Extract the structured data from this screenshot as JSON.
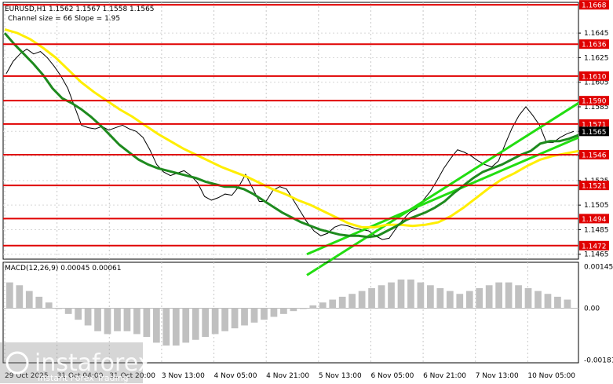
{
  "chart_data": {
    "type": "line",
    "header": {
      "symbol_line": "EURUSD,H1  1.1562 1.1567 1.1558 1.1565",
      "channel_line": "Channel size = 66 Slope = 1.95"
    },
    "price_axis": {
      "ylim": [
        1.1461,
        1.167
      ],
      "ticks": [
        "1.1645",
        "1.1625",
        "1.1605",
        "1.1585",
        "1.1565",
        "1.1545",
        "1.1525",
        "1.1505",
        "1.1485",
        "1.1465"
      ]
    },
    "current_price": "1.1565",
    "levels": [
      {
        "price": 1.1668,
        "label": "1.1668"
      },
      {
        "price": 1.1636,
        "label": "1.1636"
      },
      {
        "price": 1.161,
        "label": "1.1610"
      },
      {
        "price": 1.159,
        "label": "1.1590"
      },
      {
        "price": 1.1571,
        "label": "1.1571"
      },
      {
        "price": 1.1546,
        "label": "1.1546"
      },
      {
        "price": 1.1521,
        "label": "1.1521"
      },
      {
        "price": 1.1494,
        "label": "1.1494"
      },
      {
        "price": 1.1472,
        "label": "1.1472"
      }
    ],
    "x_labels": [
      "29 Oct 2025",
      "31 Oct 04:00",
      "31 Oct 20:00",
      "3 Nov 13:00",
      "4 Nov 05:00",
      "4 Nov 21:00",
      "5 Nov 13:00",
      "6 Nov 05:00",
      "6 Nov 21:00",
      "7 Nov 13:00",
      "10 Nov 05:00"
    ],
    "close": [
      1.1612,
      1.1622,
      1.1628,
      1.1632,
      1.1628,
      1.163,
      1.1625,
      1.1618,
      1.161,
      1.16,
      1.1585,
      1.157,
      1.1568,
      1.1567,
      1.1569,
      1.1566,
      1.1568,
      1.157,
      1.1567,
      1.1565,
      1.156,
      1.155,
      1.1538,
      1.1532,
      1.1529,
      1.1531,
      1.1533,
      1.1529,
      1.1523,
      1.1512,
      1.1509,
      1.1511,
      1.1514,
      1.1513,
      1.152,
      1.153,
      1.1519,
      1.1508,
      1.1508,
      1.1517,
      1.152,
      1.1518,
      1.1509,
      1.15,
      1.1491,
      1.1484,
      1.148,
      1.1482,
      1.1487,
      1.1489,
      1.1488,
      1.1486,
      1.1485,
      1.1484,
      1.148,
      1.1477,
      1.1478,
      1.1486,
      1.1493,
      1.1499,
      1.1502,
      1.1509,
      1.1516,
      1.1525,
      1.1535,
      1.1543,
      1.155,
      1.1548,
      1.1545,
      1.1541,
      1.1538,
      1.1536,
      1.1541,
      1.1555,
      1.1568,
      1.1578,
      1.1585,
      1.1578,
      1.157,
      1.1556,
      1.1556,
      1.156,
      1.1563,
      1.1565
    ],
    "ema_green": [
      1.1645,
      1.1636,
      1.1628,
      1.162,
      1.1611,
      1.16,
      1.1592,
      1.1588,
      1.1583,
      1.1577,
      1.157,
      1.1562,
      1.1554,
      1.1548,
      1.1542,
      1.1538,
      1.1535,
      1.1533,
      1.1531,
      1.1529,
      1.1527,
      1.1524,
      1.1522,
      1.152,
      1.152,
      1.1518,
      1.1514,
      1.1509,
      1.1504,
      1.1499,
      1.1495,
      1.1491,
      1.1488,
      1.1485,
      1.1483,
      1.1481,
      1.148,
      1.148,
      1.1479,
      1.148,
      1.1484,
      1.1488,
      1.1493,
      1.1496,
      1.1499,
      1.1503,
      1.1508,
      1.1515,
      1.1521,
      1.1527,
      1.1532,
      1.1535,
      1.1538,
      1.1542,
      1.1546,
      1.1549,
      1.1555,
      1.1557,
      1.1557,
      1.1559,
      1.1562
    ],
    "ema_yellow": [
      1.1648,
      1.1645,
      1.164,
      1.1633,
      1.1625,
      1.1615,
      1.1605,
      1.1597,
      1.159,
      1.1583,
      1.1577,
      1.157,
      1.1563,
      1.1557,
      1.1551,
      1.1546,
      1.1541,
      1.1536,
      1.1532,
      1.1528,
      1.1523,
      1.1518,
      1.1514,
      1.1509,
      1.1505,
      1.15,
      1.1495,
      1.149,
      1.1487,
      1.1487,
      1.1489,
      1.1489,
      1.1488,
      1.1489,
      1.1491,
      1.1496,
      1.1503,
      1.1511,
      1.1519,
      1.1526,
      1.1531,
      1.1537,
      1.1542,
      1.1545,
      1.1547,
      1.1549
    ],
    "channel": {
      "lower_start": [
        1.1465,
        1.1448
      ],
      "lower_end": [
        1.156,
        1.1588
      ],
      "slope_per_bar": 0.0004
    },
    "macd": {
      "label": "MACD(12,26,9) 0.00045 0.00061",
      "ticks": [
        "0.00145",
        "0.00",
        "-0.00181"
      ],
      "ylim": [
        -0.0019,
        0.0016
      ],
      "hist": [
        0.0009,
        0.0008,
        0.0006,
        0.0004,
        0.0002,
        0.0,
        -0.0002,
        -0.0004,
        -0.0006,
        -0.0008,
        -0.0009,
        -0.0008,
        -0.0008,
        -0.0009,
        -0.001,
        -0.0012,
        -0.0013,
        -0.0013,
        -0.0012,
        -0.0011,
        -0.001,
        -0.0009,
        -0.0008,
        -0.0007,
        -0.0006,
        -0.0005,
        -0.0004,
        -0.0003,
        -0.0002,
        -0.0001,
        0.0,
        0.0001,
        0.0002,
        0.0003,
        0.0004,
        0.0005,
        0.0006,
        0.0007,
        0.0008,
        0.0009,
        0.001,
        0.001,
        0.0009,
        0.0008,
        0.0007,
        0.0006,
        0.0005,
        0.0006,
        0.0007,
        0.0008,
        0.0009,
        0.0009,
        0.0008,
        0.0007,
        0.0006,
        0.0005,
        0.0004,
        0.0003
      ]
    },
    "watermark": {
      "brand": "instaforex",
      "tagline": "Instant Forex Trading"
    }
  }
}
